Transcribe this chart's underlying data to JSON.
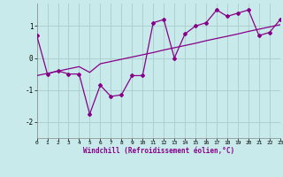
{
  "xlabel": "Windchill (Refroidissement éolien,°C)",
  "bg_color": "#c8eaea",
  "line_color": "#880088",
  "grid_color": "#aacccc",
  "x_data": [
    0,
    1,
    2,
    3,
    4,
    5,
    6,
    7,
    8,
    9,
    10,
    11,
    12,
    13,
    14,
    15,
    16,
    17,
    18,
    19,
    20,
    21,
    22,
    23
  ],
  "y_main": [
    0.7,
    -0.5,
    -0.4,
    -0.5,
    -0.5,
    -1.75,
    -0.85,
    -1.2,
    -1.15,
    -0.55,
    -0.55,
    1.1,
    1.2,
    0.0,
    0.75,
    1.0,
    1.1,
    1.5,
    1.3,
    1.4,
    1.5,
    0.7,
    0.8,
    1.2
  ],
  "y_trend": [
    -0.55,
    -0.48,
    -0.41,
    -0.34,
    -0.27,
    -0.45,
    -0.18,
    -0.11,
    -0.04,
    0.03,
    0.1,
    0.17,
    0.25,
    0.32,
    0.39,
    0.46,
    0.54,
    0.61,
    0.68,
    0.75,
    0.83,
    0.9,
    0.97,
    1.04
  ],
  "ylim": [
    -2.5,
    1.7
  ],
  "xlim": [
    0,
    23
  ],
  "yticks": [
    -2,
    -1,
    0,
    1
  ],
  "xticks": [
    0,
    1,
    2,
    3,
    4,
    5,
    6,
    7,
    8,
    9,
    10,
    11,
    12,
    13,
    14,
    15,
    16,
    17,
    18,
    19,
    20,
    21,
    22,
    23
  ]
}
